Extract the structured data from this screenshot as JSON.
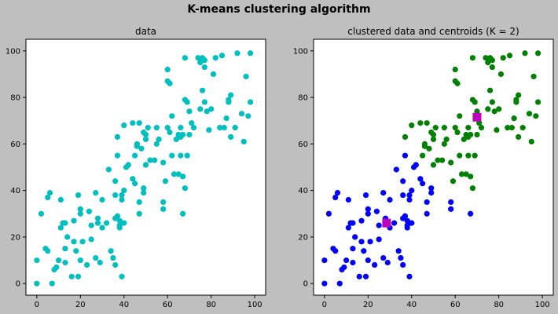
{
  "figure": {
    "suptitle": "K-means clustering algorithm"
  },
  "colors": {
    "raw_points": "#00bfbf",
    "cluster_1": "#0000ff",
    "cluster_2": "#008000",
    "centroid": "#bf00bf"
  },
  "chart_data": [
    {
      "type": "scatter",
      "title": "data",
      "xlim": [
        -5,
        105
      ],
      "ylim": [
        -5,
        105
      ],
      "xticks": [
        0,
        20,
        40,
        60,
        80,
        100
      ],
      "yticks": [
        0,
        20,
        40,
        60,
        80,
        100
      ],
      "grid": false,
      "series": [
        {
          "color_key": "raw_points",
          "points": [
            [
              0,
              10
            ],
            [
              0,
              0
            ],
            [
              2,
              30
            ],
            [
              4,
              15
            ],
            [
              5,
              14
            ],
            [
              5,
              37
            ],
            [
              6,
              39
            ],
            [
              7,
              0
            ],
            [
              8,
              6
            ],
            [
              9,
              7
            ],
            [
              10,
              10
            ],
            [
              11,
              24
            ],
            [
              11,
              36
            ],
            [
              12,
              26
            ],
            [
              13,
              9
            ],
            [
              13,
              15
            ],
            [
              13,
              26
            ],
            [
              14,
              20
            ],
            [
              16,
              3
            ],
            [
              17,
              18
            ],
            [
              17,
              27
            ],
            [
              18,
              14
            ],
            [
              19,
              38
            ],
            [
              19,
              3
            ],
            [
              20,
              30
            ],
            [
              20,
              32
            ],
            [
              20,
              10
            ],
            [
              21,
              18
            ],
            [
              23,
              8
            ],
            [
              24,
              31
            ],
            [
              25,
              25
            ],
            [
              25,
              19
            ],
            [
              27,
              39
            ],
            [
              27,
              11
            ],
            [
              28,
              28
            ],
            [
              28,
              26
            ],
            [
              29,
              9
            ],
            [
              30,
              24
            ],
            [
              30,
              36
            ],
            [
              32,
              26
            ],
            [
              33,
              49
            ],
            [
              34,
              14
            ],
            [
              35,
              11
            ],
            [
              36,
              8
            ],
            [
              36,
              28
            ],
            [
              36,
              38
            ],
            [
              36,
              44
            ],
            [
              37,
              55
            ],
            [
              37,
              63
            ],
            [
              37,
              29
            ],
            [
              38,
              27
            ],
            [
              38,
              25
            ],
            [
              38,
              24
            ],
            [
              39,
              38
            ],
            [
              39,
              36
            ],
            [
              39,
              3
            ],
            [
              40,
              40
            ],
            [
              40,
              26
            ],
            [
              40,
              68
            ],
            [
              41,
              50
            ],
            [
              42,
              51
            ],
            [
              44,
              69
            ],
            [
              44,
              45
            ],
            [
              45,
              43
            ],
            [
              45,
              55
            ],
            [
              46,
              60
            ],
            [
              46,
              59
            ],
            [
              47,
              69
            ],
            [
              47,
              35
            ],
            [
              47,
              30
            ],
            [
              48,
              58
            ],
            [
              49,
              41
            ],
            [
              49,
              39
            ],
            [
              49,
              65
            ],
            [
              50,
              62
            ],
            [
              50,
              64
            ],
            [
              50,
              51
            ],
            [
              51,
              67
            ],
            [
              52,
              53
            ],
            [
              54,
              53
            ],
            [
              55,
              67
            ],
            [
              55,
              60
            ],
            [
              56,
              62
            ],
            [
              58,
              35
            ],
            [
              58,
              32
            ],
            [
              58,
              52
            ],
            [
              59,
              44
            ],
            [
              60,
              92
            ],
            [
              60,
              87
            ],
            [
              60,
              67
            ],
            [
              61,
              86
            ],
            [
              61,
              65
            ],
            [
              62,
              72
            ],
            [
              62,
              55
            ],
            [
              63,
              47
            ],
            [
              64,
              62
            ],
            [
              65,
              64
            ],
            [
              65,
              47
            ],
            [
              66,
              55
            ],
            [
              66,
              67
            ],
            [
              66,
              63
            ],
            [
              67,
              64
            ],
            [
              67,
              46
            ],
            [
              67,
              30
            ],
            [
              68,
              97
            ],
            [
              68,
              79
            ],
            [
              68,
              41
            ],
            [
              69,
              78
            ],
            [
              69,
              55
            ],
            [
              70,
              64
            ],
            [
              70,
              74
            ],
            [
              71,
              69
            ],
            [
              72,
              67
            ],
            [
              74,
              97
            ],
            [
              75,
              75
            ],
            [
              75,
              95
            ],
            [
              76,
              97
            ],
            [
              76,
              83
            ],
            [
              77,
              78
            ],
            [
              77,
              96
            ],
            [
              77,
              93
            ],
            [
              78,
              74
            ],
            [
              79,
              66
            ],
            [
              80,
              75
            ],
            [
              81,
              90
            ],
            [
              82,
              97
            ],
            [
              84,
              67
            ],
            [
              85,
              98
            ],
            [
              86,
              67
            ],
            [
              87,
              71
            ],
            [
              88,
              79
            ],
            [
              88,
              78
            ],
            [
              89,
              63
            ],
            [
              89,
              81
            ],
            [
              91,
              67
            ],
            [
              92,
              99
            ],
            [
              94,
              73
            ],
            [
              95,
              61
            ],
            [
              96,
              89
            ],
            [
              97,
              72
            ],
            [
              98,
              99
            ],
            [
              98,
              78
            ]
          ]
        }
      ]
    },
    {
      "type": "scatter",
      "title": "clustered data and centroids (K = 2)",
      "xlim": [
        -5,
        105
      ],
      "ylim": [
        -5,
        105
      ],
      "xticks": [
        0,
        20,
        40,
        60,
        80,
        100
      ],
      "yticks": [
        0,
        20,
        40,
        60,
        80,
        100
      ],
      "grid": false,
      "series": [
        {
          "color_key": "cluster_1",
          "points": [
            [
              0,
              10
            ],
            [
              0,
              0
            ],
            [
              2,
              30
            ],
            [
              4,
              15
            ],
            [
              5,
              14
            ],
            [
              5,
              37
            ],
            [
              6,
              39
            ],
            [
              7,
              0
            ],
            [
              8,
              6
            ],
            [
              9,
              7
            ],
            [
              10,
              10
            ],
            [
              11,
              24
            ],
            [
              11,
              36
            ],
            [
              12,
              26
            ],
            [
              13,
              9
            ],
            [
              13,
              15
            ],
            [
              13,
              26
            ],
            [
              14,
              20
            ],
            [
              16,
              3
            ],
            [
              17,
              18
            ],
            [
              17,
              27
            ],
            [
              18,
              14
            ],
            [
              19,
              38
            ],
            [
              19,
              3
            ],
            [
              20,
              30
            ],
            [
              20,
              32
            ],
            [
              20,
              10
            ],
            [
              21,
              18
            ],
            [
              23,
              8
            ],
            [
              24,
              31
            ],
            [
              25,
              25
            ],
            [
              25,
              19
            ],
            [
              27,
              39
            ],
            [
              27,
              11
            ],
            [
              28,
              28
            ],
            [
              28,
              26
            ],
            [
              29,
              9
            ],
            [
              30,
              24
            ],
            [
              30,
              36
            ],
            [
              32,
              26
            ],
            [
              33,
              49
            ],
            [
              34,
              14
            ],
            [
              35,
              11
            ],
            [
              36,
              8
            ],
            [
              36,
              28
            ],
            [
              36,
              38
            ],
            [
              36,
              44
            ],
            [
              37,
              55
            ],
            [
              37,
              29
            ],
            [
              38,
              27
            ],
            [
              38,
              25
            ],
            [
              38,
              24
            ],
            [
              39,
              38
            ],
            [
              39,
              36
            ],
            [
              39,
              3
            ],
            [
              40,
              40
            ],
            [
              40,
              26
            ],
            [
              41,
              50
            ],
            [
              42,
              51
            ],
            [
              44,
              45
            ],
            [
              45,
              43
            ],
            [
              47,
              35
            ],
            [
              47,
              30
            ],
            [
              49,
              41
            ],
            [
              49,
              39
            ],
            [
              58,
              35
            ],
            [
              58,
              32
            ],
            [
              67,
              30
            ]
          ]
        },
        {
          "color_key": "cluster_2",
          "points": [
            [
              37,
              63
            ],
            [
              40,
              68
            ],
            [
              44,
              69
            ],
            [
              45,
              55
            ],
            [
              46,
              60
            ],
            [
              46,
              59
            ],
            [
              47,
              69
            ],
            [
              48,
              58
            ],
            [
              49,
              65
            ],
            [
              50,
              62
            ],
            [
              50,
              64
            ],
            [
              50,
              51
            ],
            [
              51,
              67
            ],
            [
              52,
              53
            ],
            [
              54,
              53
            ],
            [
              55,
              67
            ],
            [
              55,
              60
            ],
            [
              56,
              62
            ],
            [
              58,
              52
            ],
            [
              59,
              44
            ],
            [
              60,
              92
            ],
            [
              60,
              87
            ],
            [
              60,
              67
            ],
            [
              61,
              86
            ],
            [
              61,
              65
            ],
            [
              62,
              72
            ],
            [
              62,
              55
            ],
            [
              63,
              47
            ],
            [
              64,
              62
            ],
            [
              65,
              64
            ],
            [
              65,
              47
            ],
            [
              66,
              55
            ],
            [
              66,
              67
            ],
            [
              66,
              63
            ],
            [
              67,
              64
            ],
            [
              67,
              46
            ],
            [
              68,
              97
            ],
            [
              68,
              79
            ],
            [
              68,
              41
            ],
            [
              69,
              78
            ],
            [
              69,
              55
            ],
            [
              70,
              64
            ],
            [
              70,
              74
            ],
            [
              71,
              69
            ],
            [
              72,
              67
            ],
            [
              74,
              97
            ],
            [
              75,
              75
            ],
            [
              75,
              95
            ],
            [
              76,
              97
            ],
            [
              76,
              83
            ],
            [
              77,
              78
            ],
            [
              77,
              96
            ],
            [
              77,
              93
            ],
            [
              78,
              74
            ],
            [
              79,
              66
            ],
            [
              80,
              75
            ],
            [
              81,
              90
            ],
            [
              82,
              97
            ],
            [
              84,
              67
            ],
            [
              85,
              98
            ],
            [
              86,
              67
            ],
            [
              87,
              71
            ],
            [
              88,
              79
            ],
            [
              88,
              78
            ],
            [
              89,
              63
            ],
            [
              89,
              81
            ],
            [
              91,
              67
            ],
            [
              92,
              99
            ],
            [
              94,
              73
            ],
            [
              95,
              61
            ],
            [
              96,
              89
            ],
            [
              97,
              72
            ],
            [
              98,
              99
            ],
            [
              98,
              78
            ]
          ]
        }
      ],
      "centroids": {
        "color_key": "centroid",
        "marker": "square",
        "points": [
          [
            28.5,
            26
          ],
          [
            70,
            71.5
          ]
        ]
      }
    }
  ]
}
